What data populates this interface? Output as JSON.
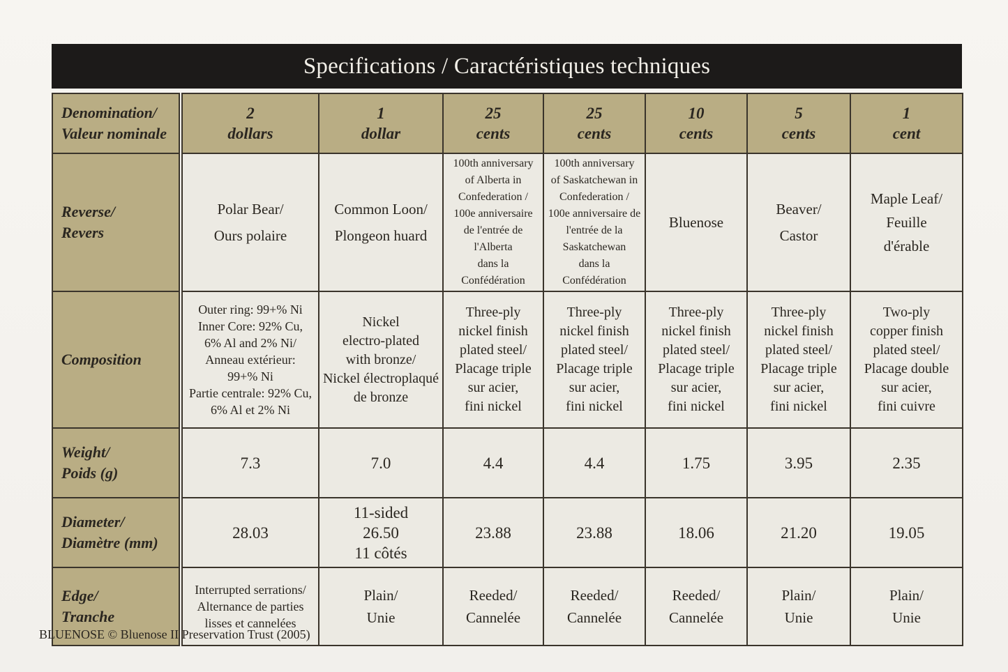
{
  "title": "Specifications / Caractéristiques techniques",
  "row_labels": {
    "denomination": [
      "Denomination/",
      "Valeur nominale"
    ],
    "reverse": [
      "Reverse/",
      "Revers"
    ],
    "composition": [
      "Composition"
    ],
    "weight": [
      "Weight/",
      "Poids (g)"
    ],
    "diameter": [
      "Diameter/",
      "Diamètre (mm)"
    ],
    "edge": [
      "Edge/",
      "Tranche"
    ]
  },
  "coins": [
    {
      "denomination": [
        "2",
        "dollars"
      ],
      "reverse": [
        "Polar Bear/",
        "Ours polaire"
      ],
      "composition": [
        "Outer ring: 99+% Ni",
        "Inner Core: 92% Cu,",
        "6% Al and 2% Ni/",
        "Anneau extérieur:",
        "99+% Ni",
        "Partie centrale: 92% Cu,",
        "6% Al et 2% Ni"
      ],
      "weight": "7.3",
      "diameter": [
        "28.03"
      ],
      "edge": [
        "Interrupted serrations/",
        "Alternance de parties",
        "lisses et cannelées"
      ]
    },
    {
      "denomination": [
        "1",
        "dollar"
      ],
      "reverse": [
        "Common Loon/",
        "Plongeon huard"
      ],
      "composition": [
        "Nickel",
        "electro-plated",
        "with bronze/",
        "Nickel électroplaqué",
        "de bronze"
      ],
      "weight": "7.0",
      "diameter": [
        "11-sided",
        "26.50",
        "11 côtés"
      ],
      "edge": [
        "Plain/",
        "Unie"
      ]
    },
    {
      "denomination": [
        "25",
        "cents"
      ],
      "reverse": [
        "100th anniversary",
        "of Alberta in",
        "Confederation /",
        "100e anniversaire",
        "de l'entrée de l'Alberta",
        "dans la Confédération"
      ],
      "composition": [
        "Three-ply",
        "nickel finish",
        "plated steel/",
        "Placage triple",
        "sur acier,",
        "fini nickel"
      ],
      "weight": "4.4",
      "diameter": [
        "23.88"
      ],
      "edge": [
        "Reeded/",
        "Cannelée"
      ]
    },
    {
      "denomination": [
        "25",
        "cents"
      ],
      "reverse": [
        "100th anniversary",
        "of Saskatchewan in",
        "Confederation /",
        "100e anniversaire de",
        "l'entrée de la Saskatchewan",
        "dans la Confédération"
      ],
      "composition": [
        "Three-ply",
        "nickel finish",
        "plated steel/",
        "Placage triple",
        "sur acier,",
        "fini nickel"
      ],
      "weight": "4.4",
      "diameter": [
        "23.88"
      ],
      "edge": [
        "Reeded/",
        "Cannelée"
      ]
    },
    {
      "denomination": [
        "10",
        "cents"
      ],
      "reverse": [
        "Bluenose"
      ],
      "composition": [
        "Three-ply",
        "nickel finish",
        "plated steel/",
        "Placage triple",
        "sur acier,",
        "fini nickel"
      ],
      "weight": "1.75",
      "diameter": [
        "18.06"
      ],
      "edge": [
        "Reeded/",
        "Cannelée"
      ]
    },
    {
      "denomination": [
        "5",
        "cents"
      ],
      "reverse": [
        "Beaver/",
        "Castor"
      ],
      "composition": [
        "Three-ply",
        "nickel finish",
        "plated steel/",
        "Placage triple",
        "sur acier,",
        "fini nickel"
      ],
      "weight": "3.95",
      "diameter": [
        "21.20"
      ],
      "edge": [
        "Plain/",
        "Unie"
      ]
    },
    {
      "denomination": [
        "1",
        "cent"
      ],
      "reverse": [
        "Maple Leaf/",
        "Feuille",
        "d'érable"
      ],
      "composition": [
        "Two-ply",
        "copper finish",
        "plated steel/",
        "Placage double",
        "sur acier,",
        "fini cuivre"
      ],
      "weight": "2.35",
      "diameter": [
        "19.05"
      ],
      "edge": [
        "Plain/",
        "Unie"
      ]
    }
  ],
  "footer": "BLUENOSE © Bluenose II Preservation Trust (2005)",
  "colors": {
    "title_bar": "#1c1a19",
    "header_fill": "#b9ad84",
    "cell_fill": "#eceae3",
    "border": "#3a342b"
  }
}
